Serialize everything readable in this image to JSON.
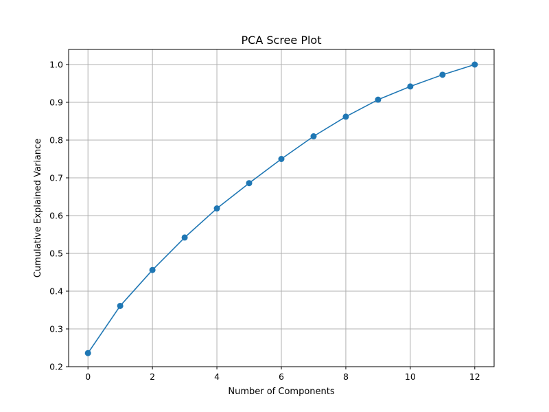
{
  "chart_data": {
    "type": "line",
    "title": "PCA Scree Plot",
    "xlabel": "Number of Components",
    "ylabel": "Cumulative Explained Variance",
    "x": [
      0,
      1,
      2,
      3,
      4,
      5,
      6,
      7,
      8,
      9,
      10,
      11,
      12
    ],
    "series": [
      {
        "values": [
          0.236,
          0.361,
          0.456,
          0.542,
          0.619,
          0.686,
          0.75,
          0.81,
          0.862,
          0.907,
          0.942,
          0.973,
          1.0
        ],
        "color": "#1f77b4",
        "marker": "circle"
      }
    ],
    "xlim": [
      -0.6,
      12.6
    ],
    "ylim": [
      0.2,
      1.04
    ],
    "xticks": [
      0,
      2,
      4,
      6,
      8,
      10,
      12
    ],
    "yticks": [
      0.2,
      0.3,
      0.4,
      0.5,
      0.6,
      0.7,
      0.8,
      0.9,
      1.0
    ],
    "ytick_labels": [
      "0.2",
      "0.3",
      "0.4",
      "0.5",
      "0.6",
      "0.7",
      "0.8",
      "0.9",
      "1.0"
    ],
    "grid": true,
    "legend": "none"
  }
}
